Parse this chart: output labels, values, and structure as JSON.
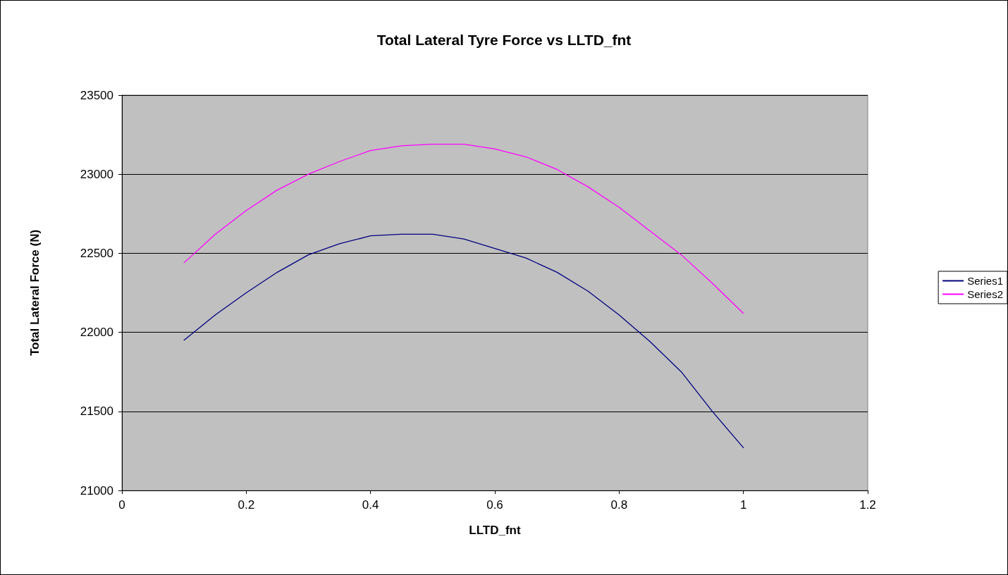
{
  "chart_data": {
    "type": "line",
    "title": "Total Lateral Tyre Force vs LLTD_fnt",
    "xlabel": "LLTD_fnt",
    "ylabel": "Total Lateral Force (N)",
    "x": [
      0.1,
      0.15,
      0.2,
      0.25,
      0.3,
      0.35,
      0.4,
      0.45,
      0.5,
      0.55,
      0.6,
      0.65,
      0.7,
      0.75,
      0.8,
      0.85,
      0.9,
      0.95,
      1.0
    ],
    "series": [
      {
        "name": "Series1",
        "color": "#000080",
        "values": [
          21950,
          22110,
          22250,
          22380,
          22490,
          22560,
          22610,
          22620,
          22620,
          22590,
          22530,
          22470,
          22380,
          22260,
          22110,
          21940,
          21750,
          21500,
          21270
        ]
      },
      {
        "name": "Series2",
        "color": "#ff00ff",
        "values": [
          22440,
          22620,
          22770,
          22900,
          23000,
          23080,
          23150,
          23180,
          23190,
          23190,
          23160,
          23110,
          23030,
          22920,
          22790,
          22640,
          22490,
          22310,
          22120
        ]
      }
    ],
    "xlim": [
      0,
      1.2
    ],
    "xticks": [
      0,
      0.2,
      0.4,
      0.6,
      0.8,
      1,
      1.2
    ],
    "ylim": [
      21000,
      23500
    ],
    "yticks": [
      21000,
      21500,
      22000,
      22500,
      23000,
      23500
    ],
    "grid": "y",
    "legend": "right",
    "marker": "none",
    "line_style": "solid"
  }
}
